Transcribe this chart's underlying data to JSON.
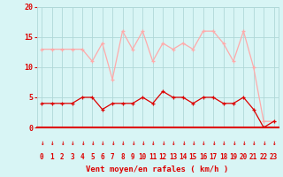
{
  "hours": [
    0,
    1,
    2,
    3,
    4,
    5,
    6,
    7,
    8,
    9,
    10,
    11,
    12,
    13,
    14,
    15,
    16,
    17,
    18,
    19,
    20,
    21,
    22,
    23
  ],
  "wind_mean": [
    4,
    4,
    4,
    4,
    5,
    5,
    3,
    4,
    4,
    4,
    5,
    4,
    6,
    5,
    5,
    4,
    5,
    5,
    4,
    4,
    5,
    3,
    0,
    1
  ],
  "wind_gust": [
    13,
    13,
    13,
    13,
    13,
    11,
    14,
    8,
    16,
    13,
    16,
    11,
    14,
    13,
    14,
    13,
    16,
    16,
    14,
    11,
    16,
    10,
    1,
    1
  ],
  "bg_color": "#d8f5f5",
  "grid_color": "#b0d8d8",
  "mean_color": "#dd0000",
  "gust_color": "#ffaaaa",
  "axis_color": "#dd0000",
  "xlabel": "Vent moyen/en rafales ( km/h )",
  "ylim": [
    0,
    20
  ],
  "xlim": [
    -0.5,
    23.5
  ],
  "yticks": [
    0,
    5,
    10,
    15,
    20
  ],
  "yticklabels": [
    "0",
    "5",
    "10",
    "15",
    "20"
  ]
}
